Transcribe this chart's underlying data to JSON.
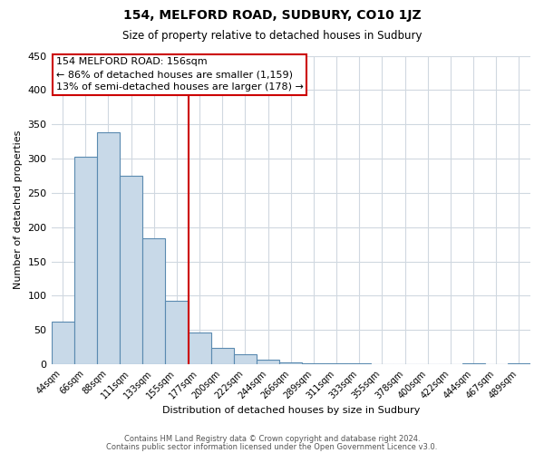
{
  "title": "154, MELFORD ROAD, SUDBURY, CO10 1JZ",
  "subtitle": "Size of property relative to detached houses in Sudbury",
  "xlabel": "Distribution of detached houses by size in Sudbury",
  "ylabel": "Number of detached properties",
  "bin_labels": [
    "44sqm",
    "66sqm",
    "88sqm",
    "111sqm",
    "133sqm",
    "155sqm",
    "177sqm",
    "200sqm",
    "222sqm",
    "244sqm",
    "266sqm",
    "289sqm",
    "311sqm",
    "333sqm",
    "355sqm",
    "378sqm",
    "400sqm",
    "422sqm",
    "444sqm",
    "467sqm",
    "489sqm"
  ],
  "bar_heights": [
    62,
    303,
    338,
    275,
    184,
    92,
    46,
    24,
    15,
    7,
    3,
    2,
    1,
    1,
    0,
    0,
    0,
    0,
    1,
    0,
    1
  ],
  "bar_color": "#c8d9e8",
  "bar_edge_color": "#5a8ab0",
  "vline_x": 5.5,
  "vline_color": "#cc0000",
  "annotation_title": "154 MELFORD ROAD: 156sqm",
  "annotation_line1": "← 86% of detached houses are smaller (1,159)",
  "annotation_line2": "13% of semi-detached houses are larger (178) →",
  "annotation_box_color": "#cc0000",
  "ylim": [
    0,
    450
  ],
  "yticks": [
    0,
    50,
    100,
    150,
    200,
    250,
    300,
    350,
    400,
    450
  ],
  "footer1": "Contains HM Land Registry data © Crown copyright and database right 2024.",
  "footer2": "Contains public sector information licensed under the Open Government Licence v3.0.",
  "background_color": "#ffffff",
  "grid_color": "#d0d8e0"
}
